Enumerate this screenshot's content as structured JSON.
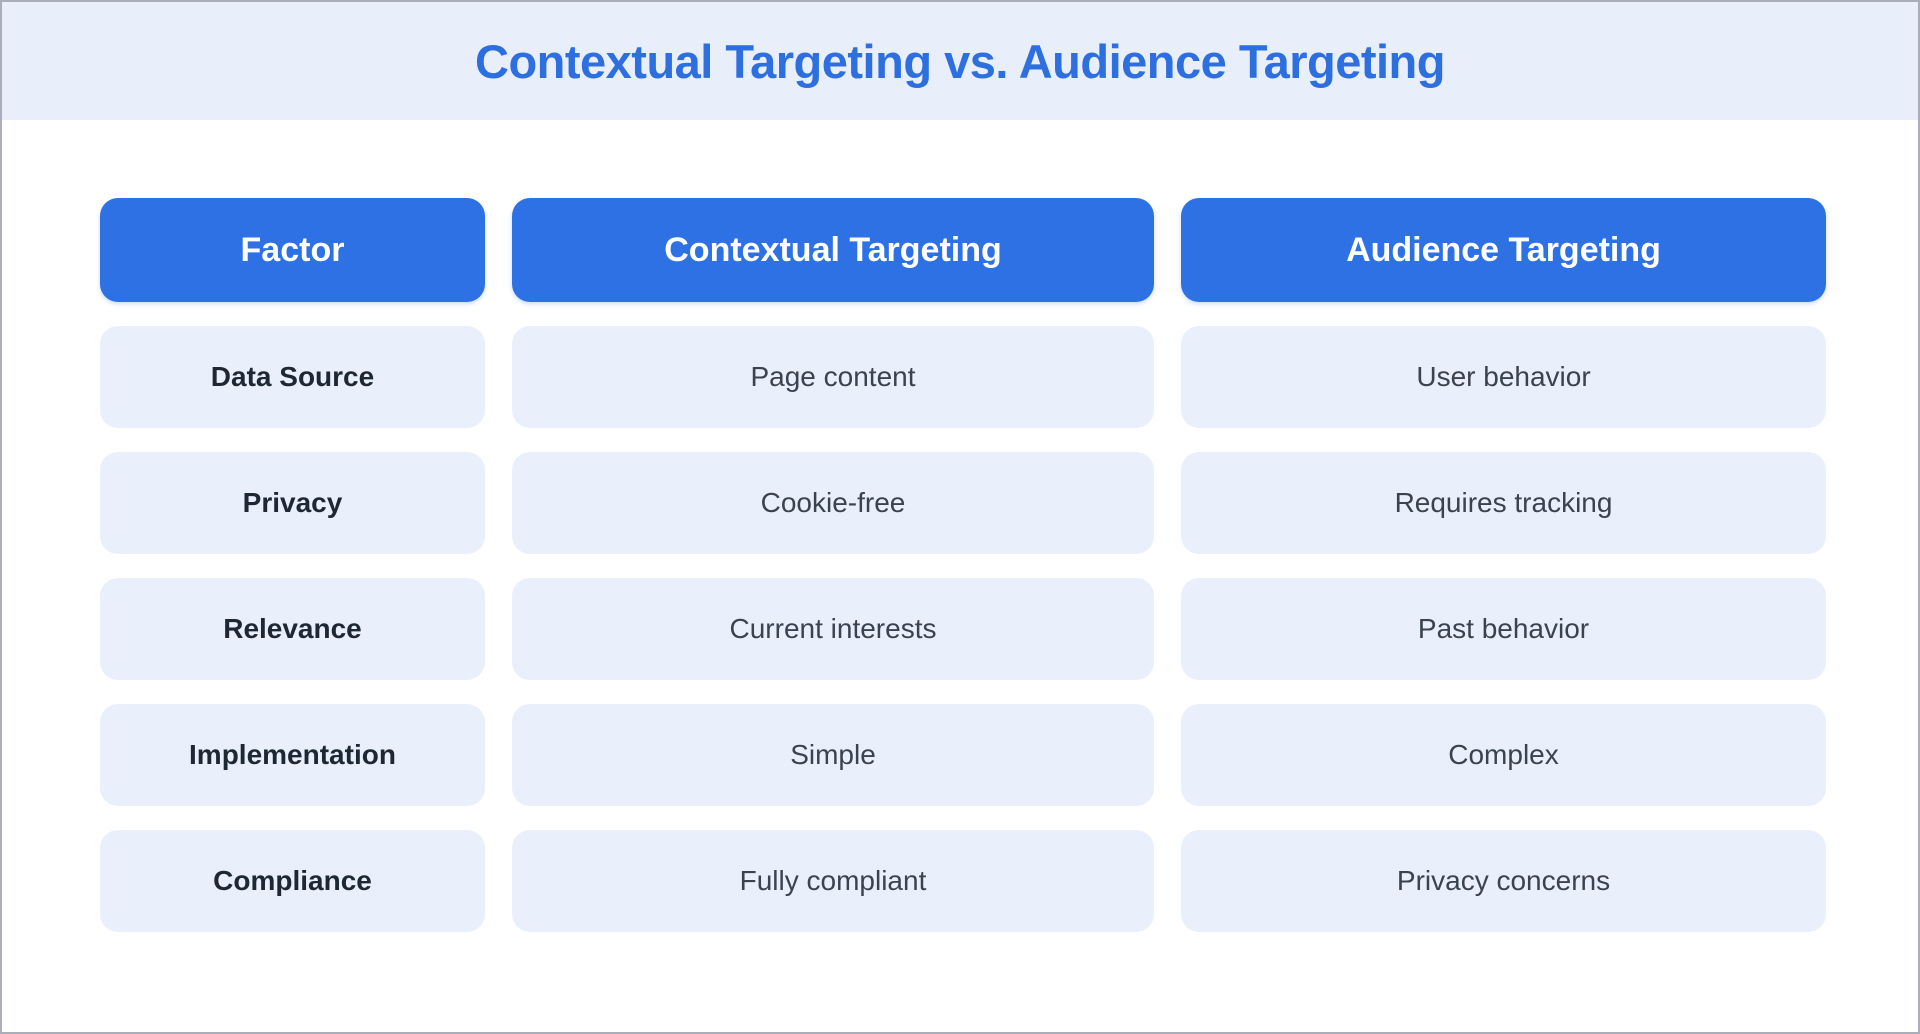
{
  "page": {
    "title": "Contextual Targeting vs. Audience Targeting"
  },
  "colors": {
    "band_bg": "#e9eefb",
    "title_blue": "#2e6fe0",
    "header_blue": "#2e71e5",
    "cell_bg": "#e9effb",
    "factor_text": "#1e2734",
    "value_text": "#3a4350",
    "frame_border": "#a9aeb8"
  },
  "chart_data": {
    "type": "table",
    "title": "Contextual Targeting vs. Audience Targeting",
    "columns": [
      "Factor",
      "Contextual Targeting",
      "Audience Targeting"
    ],
    "rows": [
      [
        "Data Source",
        "Page content",
        "User behavior"
      ],
      [
        "Privacy",
        "Cookie-free",
        "Requires tracking"
      ],
      [
        "Relevance",
        "Current interests",
        "Past behavior"
      ],
      [
        "Implementation",
        "Simple",
        "Complex"
      ],
      [
        "Compliance",
        "Fully compliant",
        "Privacy concerns"
      ]
    ],
    "layout": {
      "legend": "none",
      "grid": "off",
      "header_style": "blue-pill",
      "row_style": "light-blue-pill"
    }
  }
}
